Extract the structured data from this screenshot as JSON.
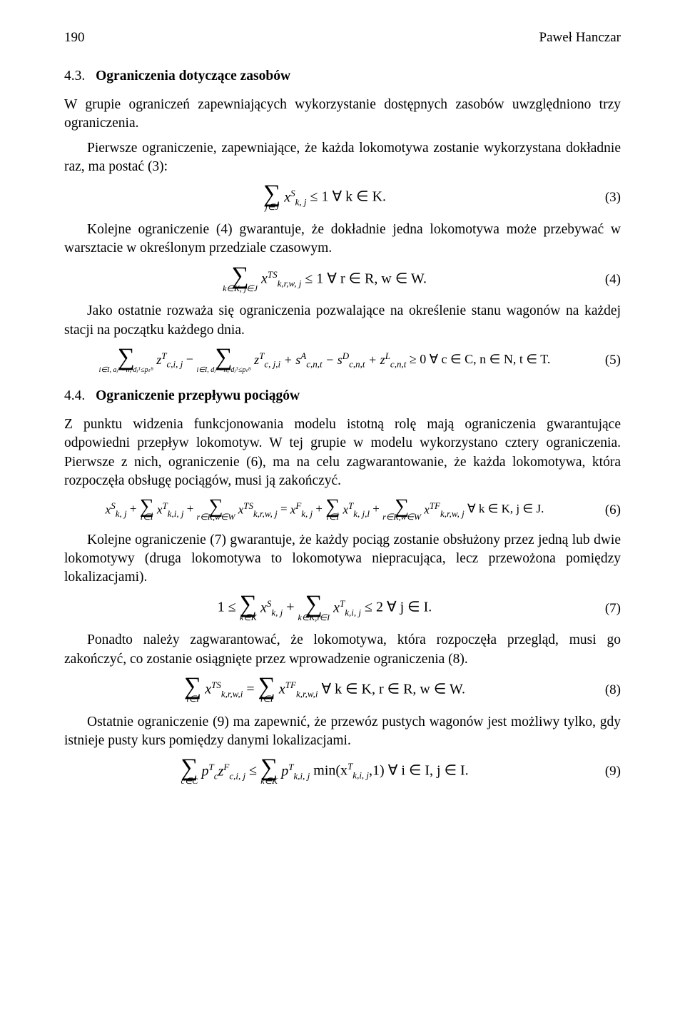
{
  "page": {
    "number": "190",
    "author": "Paweł Hanczar"
  },
  "sec43": {
    "num": "4.3.",
    "title": "Ograniczenia dotyczące zasobów",
    "p1": "W grupie ograniczeń zapewniających wykorzystanie dostępnych zasobów uwzględniono trzy ograniczenia.",
    "p2": "Pierwsze ograniczenie, zapewniające, że każda lokomotywa zostanie wykorzystana dokładnie raz, ma postać (3):",
    "p3": "Kolejne ograniczenie (4) gwarantuje, że dokładnie jedna lokomotywa może przebywać w warsztacie w określonym przedziale czasowym.",
    "p4": "Jako ostatnie rozważa się ograniczenia pozwalające na określenie stanu wagonów na każdej stacji na początku każdego dnia."
  },
  "sec44": {
    "num": "4.4.",
    "title": "Ograniczenie przepływu pociągów",
    "p1": "Z punktu widzenia funkcjonowania modelu istotną rolę mają ograniczenia gwarantujące odpowiedni przepływ lokomotyw. W tej grupie w modelu wykorzystano cztery ograniczenia. Pierwsze z nich, ograniczenie (6), ma na celu zagwarantowanie, że każda lokomotywa, która rozpoczęła obsługę pociągów, musi ją zakończyć.",
    "p2": "Kolejne ograniczenie (7) gwarantuje, że każdy pociąg zostanie obsłużony przez jedną lub dwie lokomotywy (druga lokomotywa to lokomotywa niepracująca, lecz przewożona pomiędzy lokalizacjami).",
    "p3": "Ponadto należy zagwarantować, że lokomotywa, która rozpoczęła przegląd, musi go zakończyć, co zostanie osiągnięte przez wprowadzenie ograniczenia (8).",
    "p4": "Ostatnie ograniczenie (9) ma zapewnić, że przewóz pustych wagonów jest możliwy tylko, gdy istnieje pusty kurs pomiędzy danymi lokalizacjami."
  },
  "eq": {
    "e3": {
      "label": "(3)",
      "idx": "j∈J",
      "body_var": "x",
      "body_sub": "k, j",
      "body_sup": "S",
      "rel": " ≤ 1    ∀ k ∈ K."
    },
    "e4": {
      "label": "(4)",
      "idx": "k∈K, j∈J",
      "body_var": "x",
      "body_sub": "k,r,w, j",
      "body_sup": "TS",
      "rel": " ≤ 1    ∀ r ∈ R, w ∈ W."
    },
    "e5": {
      "label": "(5)",
      "idx1": "i∈I, aⱼᴺ=n, dⱼᵀ≤pₜᴮ",
      "t1_var": "z",
      "t1_sub": "c,i, j",
      "t1_sup": "T",
      "minus": " − ",
      "idx2": "i∈I, dⱼᴺ=n, dⱼᵀ≤pₜᴮ",
      "t2_var": "z",
      "t2_sub": "c, j,i",
      "t2_sup": "T",
      "t3": " + s",
      "t3_sub": "c,n,t",
      "t3_sup": "A",
      "t4": " − s",
      "t4_sub": "c,n,t",
      "t4_sup": "D",
      "t5": " + z",
      "t5_sub": "c,n,t",
      "t5_sup": "L",
      "rel": " ≥ 0    ∀ c ∈ C, n ∈ N, t ∈ T."
    },
    "e6": {
      "label": "(6)",
      "a_var": "x",
      "a_sub": "k, j",
      "a_sup": "S",
      "plus": " + ",
      "b_idx": "i∈I",
      "b_var": "x",
      "b_sub": "k,i, j",
      "b_sup": "T",
      "c_idx": "r∈R,w∈W",
      "c_var": "x",
      "c_sub": "k,r,w, j",
      "c_sup": "TS",
      "eq": " = ",
      "d_var": "x",
      "d_sub": "k, j",
      "d_sup": "F",
      "e_idx": "l∈I",
      "e_var": "x",
      "e_sub": "k, j,l",
      "e_sup": "T",
      "f_idx": "r∈R,w∈W",
      "f_var": "x",
      "f_sub": "k,r,w, j",
      "f_sup": "TF",
      "rel": "    ∀ k ∈ K, j ∈ J."
    },
    "e7": {
      "label": "(7)",
      "one": "1 ≤ ",
      "a_idx": "k∈K",
      "a_var": "x",
      "a_sub": "k, j",
      "a_sup": "S",
      "plus": " + ",
      "b_idx": "k∈K,i∈I",
      "b_var": "x",
      "b_sub": "k,i, j",
      "b_sup": "T",
      "rel": " ≤ 2    ∀ j ∈ I."
    },
    "e8": {
      "label": "(8)",
      "a_idx": "i∈I",
      "a_var": "x",
      "a_sub": "k,r,w,i",
      "a_sup": "TS",
      "eq": " = ",
      "b_idx": "i∈I",
      "b_var": "x",
      "b_sub": "k,r,w,i",
      "b_sup": "TF",
      "rel": "      ∀ k ∈ K, r ∈ R, w ∈ W."
    },
    "e9": {
      "label": "(9)",
      "a_idx": "c∈C",
      "a_var": "p",
      "a_sub": "c",
      "a_sup": "T",
      "a2_var": "z",
      "a2_sub": "c,i, j",
      "a2_sup": "F",
      "rel1": " ≤ ",
      "b_idx": "k∈K",
      "b_var": "p",
      "b_sub": "k,i, j",
      "b_sup": "T",
      "min": " min(x",
      "min_sub": "k,i, j",
      "min_sup": "T",
      "min_close": ",1)",
      "rel2": "    ∀ i ∈ I, j ∈ I."
    }
  }
}
